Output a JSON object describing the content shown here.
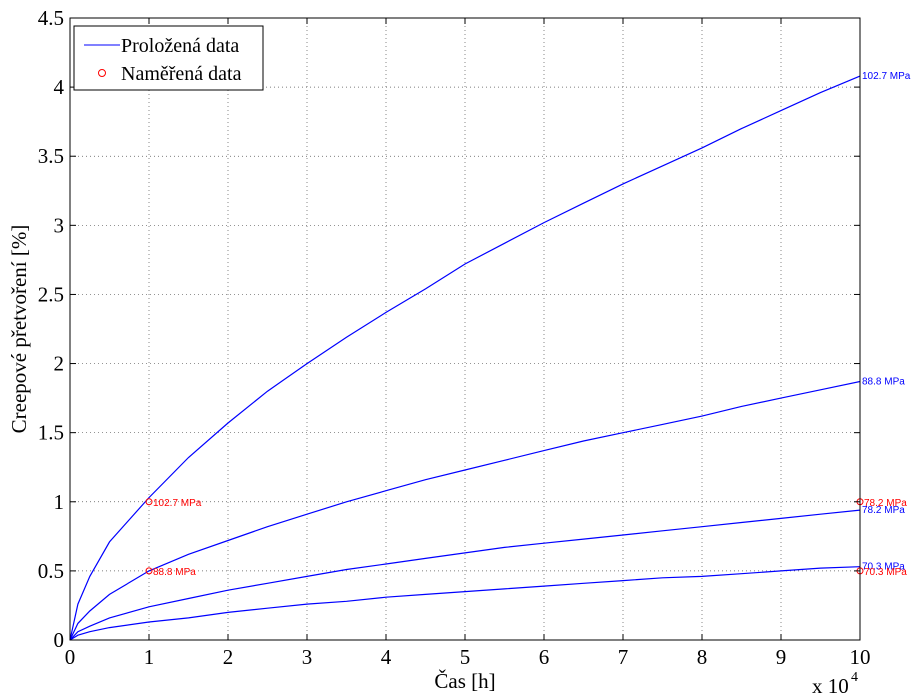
{
  "chart_data": {
    "type": "line",
    "xlabel": "Čas [h]",
    "ylabel": "Creepové přetvoření [%]",
    "x_multiplier_base": "x 10",
    "x_multiplier_exponent": "4",
    "xlim": [
      0,
      10
    ],
    "ylim": [
      0,
      4.5
    ],
    "x_ticks": [
      "0",
      "1",
      "2",
      "3",
      "4",
      "5",
      "6",
      "7",
      "8",
      "9",
      "10"
    ],
    "y_ticks": [
      "0",
      "0.5",
      "1",
      "1.5",
      "2",
      "2.5",
      "3",
      "3.5",
      "4",
      "4.5"
    ],
    "grid": true,
    "legend_position": "top-left",
    "legend": {
      "fitted_label": "Proložená data",
      "measured_label": "Naměřená data"
    },
    "fitted_color": "#0000ff",
    "measured_color": "#ff0000",
    "series": [
      {
        "label": "102.7 MPa",
        "x": [
          0,
          0.1,
          0.25,
          0.5,
          1,
          1.5,
          2,
          2.5,
          3,
          3.5,
          4,
          4.5,
          5,
          5.5,
          6,
          6.5,
          7,
          7.5,
          8,
          8.5,
          9,
          9.5,
          10
        ],
        "y": [
          0,
          0.26,
          0.46,
          0.71,
          1.03,
          1.32,
          1.57,
          1.8,
          2.0,
          2.19,
          2.37,
          2.54,
          2.72,
          2.87,
          3.02,
          3.16,
          3.3,
          3.43,
          3.56,
          3.7,
          3.83,
          3.96,
          4.08
        ]
      },
      {
        "label": "88.8 MPa",
        "x": [
          0,
          0.1,
          0.25,
          0.5,
          1,
          1.5,
          2,
          2.5,
          3,
          3.5,
          4,
          4.5,
          5,
          5.5,
          6,
          6.5,
          7,
          7.5,
          8,
          8.5,
          9,
          9.5,
          10
        ],
        "y": [
          0,
          0.12,
          0.21,
          0.33,
          0.5,
          0.62,
          0.72,
          0.82,
          0.91,
          1.0,
          1.08,
          1.16,
          1.23,
          1.3,
          1.37,
          1.44,
          1.5,
          1.56,
          1.62,
          1.69,
          1.75,
          1.81,
          1.87
        ]
      },
      {
        "label": "78.2 MPa",
        "x": [
          0,
          0.1,
          0.25,
          0.5,
          1,
          1.5,
          2,
          2.5,
          3,
          3.5,
          4,
          4.5,
          5,
          5.5,
          6,
          6.5,
          7,
          7.5,
          8,
          8.5,
          9,
          9.5,
          10
        ],
        "y": [
          0,
          0.06,
          0.1,
          0.16,
          0.24,
          0.3,
          0.36,
          0.41,
          0.46,
          0.51,
          0.55,
          0.59,
          0.63,
          0.67,
          0.7,
          0.73,
          0.76,
          0.79,
          0.82,
          0.85,
          0.88,
          0.91,
          0.94
        ]
      },
      {
        "label": "70.3 MPa",
        "x": [
          0,
          0.1,
          0.25,
          0.5,
          1,
          1.5,
          2,
          2.5,
          3,
          3.5,
          4,
          4.5,
          5,
          5.5,
          6,
          6.5,
          7,
          7.5,
          8,
          8.5,
          9,
          9.5,
          10
        ],
        "y": [
          0,
          0.035,
          0.06,
          0.09,
          0.13,
          0.16,
          0.2,
          0.23,
          0.26,
          0.28,
          0.31,
          0.33,
          0.35,
          0.37,
          0.39,
          0.41,
          0.43,
          0.45,
          0.46,
          0.48,
          0.5,
          0.52,
          0.53
        ]
      }
    ],
    "measured_points": [
      {
        "x": 1,
        "y": 1.0,
        "label": "102.7 MPa"
      },
      {
        "x": 1,
        "y": 0.5,
        "label": "88.8 MPa"
      },
      {
        "x": 10,
        "y": 1.0,
        "label": "78.2 MPa"
      },
      {
        "x": 10,
        "y": 0.5,
        "label": "70.3 MPa"
      }
    ]
  }
}
